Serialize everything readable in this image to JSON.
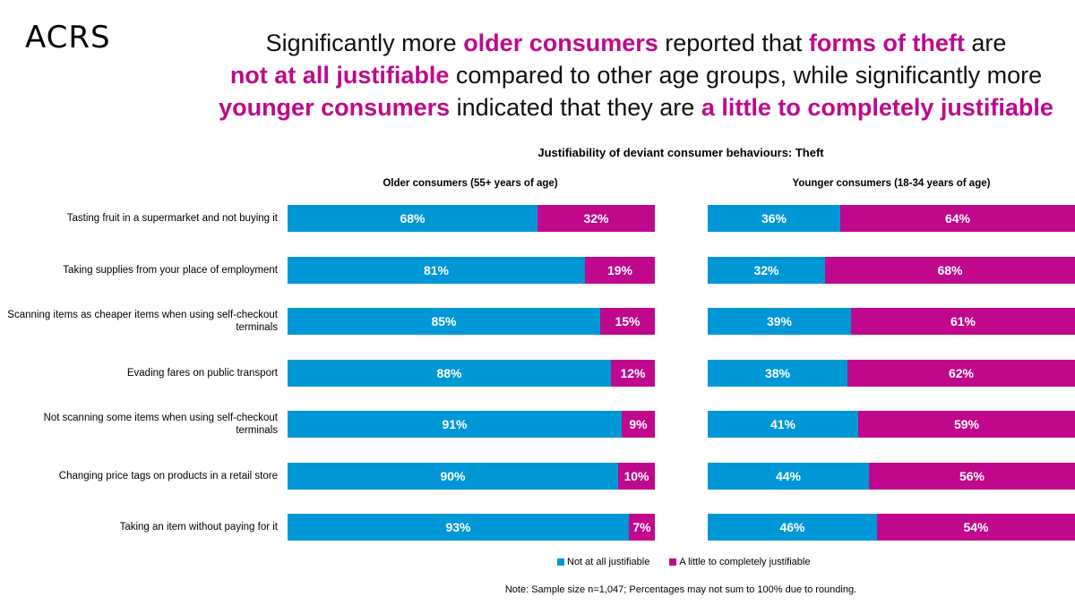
{
  "logo": "ACRS",
  "headline": {
    "l1": [
      "Significantly more ",
      "older consumers",
      " reported that ",
      "forms of theft",
      " are"
    ],
    "l2": [
      "not at all justifiable",
      " compared to other age groups, while significantly more"
    ],
    "l3": [
      "younger consumers",
      " indicated that they are ",
      "a little to completely justifiable"
    ]
  },
  "colors": {
    "not_at_all": "#0097D7",
    "little_to_completely": "#C0088C"
  },
  "chart_data": {
    "type": "bar",
    "orientation": "horizontal-stacked-100",
    "title": "Justifiability of deviant consumer behaviours: Theft",
    "categories": [
      "Tasting fruit in a supermarket and not buying it",
      "Taking supplies from your place of employment",
      "Scanning items as cheaper items when using self-checkout terminals",
      "Evading fares on public transport",
      "Not scanning some items when using self-checkout terminals",
      "Changing price tags on products in a retail store",
      "Taking an item without paying for it"
    ],
    "panels": [
      {
        "title": "Older consumers (55+ years of age)",
        "series": [
          {
            "name": "Not at all justifiable",
            "values": [
              68,
              81,
              85,
              88,
              91,
              90,
              93
            ]
          },
          {
            "name": "A little to completely justifiable",
            "values": [
              32,
              19,
              15,
              12,
              9,
              10,
              7
            ]
          }
        ]
      },
      {
        "title": "Younger consumers (18-34 years of age)",
        "series": [
          {
            "name": "Not at all justifiable",
            "values": [
              36,
              32,
              39,
              38,
              41,
              44,
              46
            ]
          },
          {
            "name": "A little to completely justifiable",
            "values": [
              64,
              68,
              61,
              62,
              59,
              56,
              54
            ]
          }
        ]
      }
    ],
    "legend": [
      "Not at all justifiable",
      "A little to completely justifiable"
    ],
    "note": "Note: Sample size n=1,047; Percentages may not sum to 100% due to rounding."
  }
}
